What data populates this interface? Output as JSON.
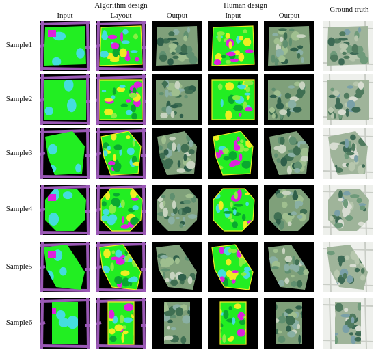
{
  "headers": {
    "group_algorithm": "Algorithm design",
    "group_human": "Human design",
    "ground_truth": "Ground truth",
    "cols": [
      "Input",
      "Layout",
      "Output",
      "Input",
      "Output"
    ]
  },
  "rows": [
    {
      "label": "Sample1",
      "shape": "rect",
      "pink": true
    },
    {
      "label": "Sample2",
      "shape": "rect2",
      "pink": false
    },
    {
      "label": "Sample3",
      "shape": "poly3",
      "pink": false
    },
    {
      "label": "Sample4",
      "shape": "oct",
      "pink": true
    },
    {
      "label": "Sample5",
      "shape": "poly5",
      "pink": true
    },
    {
      "label": "Sample6",
      "shape": "tall",
      "pink": true
    }
  ],
  "palette": {
    "green": "#22ee22",
    "cyan": "#44dddd",
    "purple": "#9b59b6",
    "magenta": "#dd22dd",
    "yellow": "#eeee22",
    "map_bg": "#000000"
  }
}
